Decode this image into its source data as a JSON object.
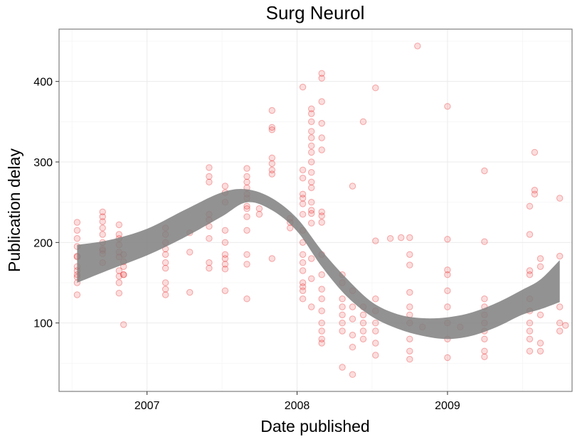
{
  "chart_data": {
    "type": "scatter",
    "title": "Surg Neurol",
    "xlabel": "Date published",
    "ylabel": "Publication delay",
    "xlim": [
      "2006-06-01",
      "2009-10-31"
    ],
    "ylim": [
      15,
      465
    ],
    "x_ticks": [
      {
        "date": "2007-01-01",
        "label": "2007"
      },
      {
        "date": "2008-01-01",
        "label": "2008"
      },
      {
        "date": "2009-01-01",
        "label": "2009"
      }
    ],
    "y_ticks": [
      100,
      200,
      300,
      400
    ],
    "grid": true,
    "legend": "none",
    "colors": {
      "points": "#e41a1c",
      "band": "#7f7f7f"
    },
    "smooth_band": {
      "x": [
        "2006-07-15",
        "2006-10-01",
        "2007-01-01",
        "2007-04-01",
        "2007-07-01",
        "2007-09-01",
        "2007-11-01",
        "2008-01-01",
        "2008-03-01",
        "2008-05-01",
        "2008-07-01",
        "2008-09-01",
        "2008-11-01",
        "2009-01-01",
        "2009-03-01",
        "2009-05-01",
        "2009-07-01",
        "2009-08-15",
        "2009-10-01"
      ],
      "lower": [
        150,
        166,
        184,
        206,
        232,
        250,
        240,
        214,
        170,
        133,
        108,
        93,
        84,
        80,
        84,
        95,
        110,
        117,
        126
      ],
      "upper": [
        197,
        203,
        217,
        240,
        262,
        266,
        255,
        230,
        190,
        155,
        126,
        111,
        106,
        107,
        113,
        125,
        141,
        154,
        178
      ]
    },
    "series": [
      {
        "x": [
          "2006-07-15",
          "2006-07-15",
          "2006-07-15",
          "2006-07-15",
          "2006-07-15",
          "2006-07-15",
          "2006-07-15",
          "2006-07-15",
          "2006-07-15",
          "2006-07-15",
          "2006-07-15",
          "2006-07-15",
          "2006-09-15",
          "2006-09-15",
          "2006-09-15",
          "2006-09-15",
          "2006-09-15",
          "2006-09-15",
          "2006-09-15",
          "2006-09-15",
          "2006-09-15",
          "2006-09-15",
          "2006-10-25",
          "2006-10-25",
          "2006-10-25",
          "2006-10-25",
          "2006-10-25",
          "2006-10-25",
          "2006-10-25",
          "2006-10-25",
          "2006-10-25",
          "2006-10-25",
          "2006-11-05",
          "2006-11-05",
          "2006-11-05",
          "2006-11-05",
          "2006-11-05",
          "2006-11-05",
          "2007-02-15",
          "2007-02-15",
          "2007-02-15",
          "2007-02-15",
          "2007-02-15",
          "2007-02-15",
          "2007-02-15",
          "2007-02-15",
          "2007-02-15",
          "2007-02-15",
          "2007-04-15",
          "2007-04-15",
          "2007-04-15",
          "2007-06-01",
          "2007-06-01",
          "2007-06-01",
          "2007-06-01",
          "2007-06-01",
          "2007-06-01",
          "2007-06-01",
          "2007-06-01",
          "2007-06-01",
          "2007-07-10",
          "2007-07-10",
          "2007-07-10",
          "2007-07-10",
          "2007-07-10",
          "2007-07-10",
          "2007-07-10",
          "2007-07-10",
          "2007-07-10",
          "2007-07-10",
          "2007-09-01",
          "2007-09-01",
          "2007-09-01",
          "2007-09-01",
          "2007-09-01",
          "2007-09-01",
          "2007-09-01",
          "2007-09-01",
          "2007-09-01",
          "2007-09-01",
          "2007-09-01",
          "2007-09-01",
          "2007-09-01",
          "2007-10-01",
          "2007-10-01",
          "2007-11-01",
          "2007-11-01",
          "2007-11-01",
          "2007-11-01",
          "2007-11-01",
          "2007-11-01",
          "2007-11-01",
          "2007-11-01",
          "2007-12-15",
          "2007-12-15",
          "2007-12-15",
          "2008-01-15",
          "2008-01-15",
          "2008-01-15",
          "2008-01-15",
          "2008-01-15",
          "2008-01-15",
          "2008-01-15",
          "2008-01-15",
          "2008-01-15",
          "2008-01-15",
          "2008-01-15",
          "2008-01-15",
          "2008-01-15",
          "2008-01-15",
          "2008-01-15",
          "2008-01-15",
          "2008-02-05",
          "2008-02-05",
          "2008-02-05",
          "2008-02-05",
          "2008-02-05",
          "2008-02-05",
          "2008-02-05",
          "2008-02-05",
          "2008-02-05",
          "2008-02-05",
          "2008-02-05",
          "2008-02-05",
          "2008-02-05",
          "2008-02-05",
          "2008-02-05",
          "2008-02-05",
          "2008-02-05",
          "2008-02-05",
          "2008-03-01",
          "2008-03-01",
          "2008-03-01",
          "2008-03-01",
          "2008-03-01",
          "2008-03-01",
          "2008-03-01",
          "2008-03-01",
          "2008-03-01",
          "2008-03-01",
          "2008-03-01",
          "2008-03-01",
          "2008-03-01",
          "2008-03-01",
          "2008-03-01",
          "2008-03-01",
          "2008-03-01",
          "2008-03-01",
          "2008-04-20",
          "2008-04-20",
          "2008-04-20",
          "2008-04-20",
          "2008-04-20",
          "2008-04-20",
          "2008-04-20",
          "2008-04-20",
          "2008-05-15",
          "2008-05-15",
          "2008-05-15",
          "2008-05-15",
          "2008-05-15",
          "2008-05-15",
          "2008-05-15",
          "2008-06-10",
          "2008-06-10",
          "2008-06-10",
          "2008-06-10",
          "2008-06-10",
          "2008-06-10",
          "2008-07-10",
          "2008-07-10",
          "2008-07-10",
          "2008-07-10",
          "2008-07-10",
          "2008-07-10",
          "2008-07-10",
          "2008-07-10",
          "2008-08-15",
          "2008-09-10",
          "2008-10-01",
          "2008-10-01",
          "2008-10-01",
          "2008-10-01",
          "2008-10-01",
          "2008-10-01",
          "2008-10-01",
          "2008-10-01",
          "2008-10-01",
          "2008-10-01",
          "2008-10-20",
          "2008-11-01",
          "2009-01-01",
          "2009-01-01",
          "2009-01-01",
          "2009-01-01",
          "2009-01-01",
          "2009-01-01",
          "2009-01-01",
          "2009-01-01",
          "2009-01-01",
          "2009-02-01",
          "2009-04-01",
          "2009-04-01",
          "2009-04-01",
          "2009-04-01",
          "2009-04-01",
          "2009-04-01",
          "2009-04-01",
          "2009-04-01",
          "2009-04-01",
          "2009-04-01",
          "2009-07-20",
          "2009-07-20",
          "2009-07-20",
          "2009-07-20",
          "2009-07-20",
          "2009-07-20",
          "2009-07-20",
          "2009-07-20",
          "2009-07-20",
          "2009-07-20",
          "2009-08-01",
          "2009-08-01",
          "2009-08-01",
          "2009-08-15",
          "2009-08-15",
          "2009-08-15",
          "2009-08-15",
          "2009-08-15",
          "2009-10-01",
          "2009-10-01",
          "2009-10-01",
          "2009-10-01",
          "2009-10-01",
          "2009-10-15"
        ],
        "y": [
          225,
          215,
          205,
          195,
          183,
          170,
          165,
          160,
          157,
          150,
          135,
          182,
          238,
          232,
          226,
          218,
          210,
          200,
          192,
          190,
          186,
          175,
          222,
          210,
          205,
          197,
          188,
          182,
          165,
          158,
          150,
          137,
          170,
          160,
          98,
          185,
          176,
          160,
          218,
          210,
          200,
          192,
          185,
          175,
          168,
          150,
          142,
          135,
          212,
          188,
          138,
          293,
          282,
          275,
          235,
          228,
          220,
          205,
          175,
          168,
          270,
          262,
          250,
          215,
          200,
          185,
          180,
          173,
          167,
          140,
          292,
          282,
          275,
          268,
          260,
          255,
          245,
          242,
          232,
          215,
          185,
          173,
          130,
          242,
          235,
          364,
          343,
          340,
          305,
          298,
          290,
          285,
          180,
          230,
          225,
          218,
          393,
          290,
          280,
          260,
          255,
          248,
          235,
          215,
          200,
          185,
          175,
          165,
          150,
          145,
          140,
          130,
          366,
          360,
          350,
          338,
          330,
          320,
          312,
          300,
          287,
          275,
          268,
          250,
          240,
          236,
          224,
          180,
          155,
          120,
          410,
          404,
          375,
          348,
          330,
          315,
          238,
          233,
          225,
          185,
          160,
          142,
          130,
          115,
          100,
          90,
          80,
          75,
          160,
          150,
          130,
          120,
          110,
          100,
          90,
          45,
          270,
          140,
          120,
          105,
          85,
          70,
          36,
          350,
          120,
          110,
          100,
          90,
          80,
          392,
          202,
          130,
          115,
          100,
          90,
          75,
          60,
          205,
          206,
          206,
          185,
          172,
          138,
          120,
          110,
          100,
          80,
          65,
          55,
          444,
          95,
          369,
          204,
          166,
          160,
          140,
          120,
          100,
          80,
          57,
          95,
          289,
          201,
          130,
          120,
          110,
          100,
          90,
          80,
          65,
          58,
          245,
          210,
          165,
          160,
          130,
          115,
          100,
          90,
          80,
          65,
          312,
          265,
          260,
          180,
          170,
          110,
          75,
          65,
          255,
          183,
          120,
          100,
          90,
          97
        ]
      }
    ]
  }
}
